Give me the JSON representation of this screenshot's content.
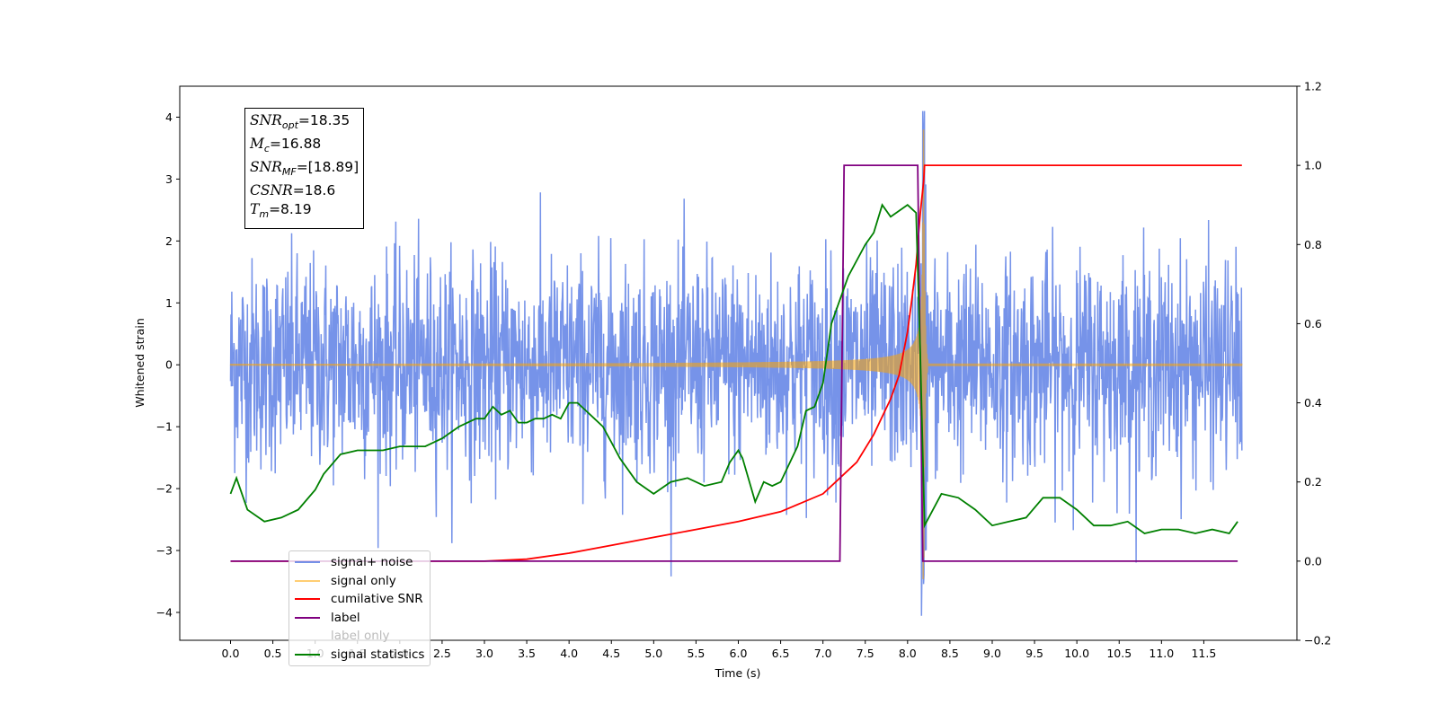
{
  "chart_data": {
    "type": "line",
    "title": "",
    "xlabel": "Time (s)",
    "ylabel": "Whitened strain",
    "xlim": [
      -0.6,
      12.6
    ],
    "ylim": [
      -4.45,
      4.5
    ],
    "y2lim": [
      -0.2,
      1.2
    ],
    "xticks": [
      0.0,
      0.5,
      1.0,
      1.5,
      2.0,
      2.5,
      3.0,
      3.5,
      4.0,
      4.5,
      5.0,
      5.5,
      6.0,
      6.5,
      7.0,
      7.5,
      8.0,
      8.5,
      9.0,
      9.5,
      10.0,
      10.5,
      11.0,
      11.5
    ],
    "xtick_labels": [
      "0.0",
      "0.5",
      "1.0",
      "1.5",
      "2.0",
      "2.5",
      "3.0",
      "3.5",
      "4.0",
      "4.5",
      "5.0",
      "5.5",
      "6.0",
      "6.5",
      "7.0",
      "7.5",
      "8.0",
      "8.5",
      "9.0",
      "9.5",
      "10.0",
      "10.5",
      "11.0",
      "11.5"
    ],
    "yticks": [
      4,
      3,
      2,
      1,
      0,
      -1,
      -2,
      -3,
      -4
    ],
    "ytick_labels": [
      "4",
      "3",
      "2",
      "1",
      "0",
      "−1",
      "−2",
      "−3",
      "−4"
    ],
    "y2ticks": [
      1.2,
      1.0,
      0.8,
      0.6,
      0.4,
      0.2,
      0.0,
      -0.2
    ],
    "y2tick_labels": [
      "1.2",
      "1.0",
      "0.8",
      "0.6",
      "0.4",
      "0.2",
      "0.0",
      "−0.2"
    ],
    "grid": false,
    "legend_position": "lower-left",
    "annotation": {
      "snr_opt": {
        "sym": "SNR",
        "sub": "opt",
        "value": "=18.35"
      },
      "mc": {
        "sym": "M",
        "sub": "c",
        "value": "=16.88"
      },
      "snr_mf": {
        "sym": "SNR",
        "sub": "MF",
        "value": "=[18.89]"
      },
      "csnr": {
        "sym": "CSNR",
        "sub": "",
        "value": "=18.6"
      },
      "tm": {
        "sym": "T",
        "sub": "m",
        "value": "=8.19"
      }
    },
    "series": [
      {
        "name": "signal+ noise",
        "color": "#4169e1",
        "axis": "left",
        "kind": "noise",
        "amplitude_sigma": 0.85,
        "peak_range": [
          -4.1,
          4.1
        ]
      },
      {
        "name": "signal only",
        "color": "#ffa500",
        "axis": "left",
        "kind": "chirp",
        "merger_time": 8.19,
        "peak_amplitude": 3.8
      },
      {
        "name": "cumilative SNR",
        "color": "#ff0000",
        "axis": "right",
        "x": [
          0.0,
          3.0,
          3.5,
          4.0,
          4.5,
          5.0,
          5.5,
          6.0,
          6.5,
          7.0,
          7.2,
          7.4,
          7.6,
          7.8,
          7.9,
          8.0,
          8.05,
          8.1,
          8.15,
          8.19,
          8.2,
          11.95
        ],
        "values": [
          0.0,
          0.0,
          0.005,
          0.02,
          0.04,
          0.06,
          0.08,
          0.1,
          0.125,
          0.17,
          0.21,
          0.25,
          0.32,
          0.41,
          0.47,
          0.58,
          0.66,
          0.75,
          0.88,
          0.96,
          1.0,
          1.0
        ]
      },
      {
        "name": "label",
        "color": "#800080",
        "axis": "right",
        "x": [
          0.0,
          7.2,
          7.25,
          8.12,
          8.18,
          11.9
        ],
        "values": [
          0.0,
          0.0,
          1.0,
          1.0,
          0.0,
          0.0
        ]
      },
      {
        "name": "label only",
        "color": "#00000000",
        "axis": "right",
        "x": [],
        "values": []
      },
      {
        "name": "signal statistics",
        "color": "#008000",
        "axis": "right",
        "x": [
          0.0,
          0.07,
          0.2,
          0.4,
          0.6,
          0.8,
          1.0,
          1.1,
          1.3,
          1.5,
          1.8,
          2.0,
          2.3,
          2.5,
          2.7,
          2.9,
          3.0,
          3.1,
          3.2,
          3.3,
          3.4,
          3.5,
          3.6,
          3.7,
          3.8,
          3.9,
          4.0,
          4.1,
          4.2,
          4.3,
          4.4,
          4.5,
          4.6,
          4.8,
          5.0,
          5.2,
          5.4,
          5.6,
          5.8,
          5.9,
          6.0,
          6.05,
          6.2,
          6.3,
          6.4,
          6.5,
          6.7,
          6.8,
          6.9,
          7.0,
          7.1,
          7.3,
          7.5,
          7.6,
          7.7,
          7.8,
          8.0,
          8.1,
          8.15,
          8.2,
          8.3,
          8.4,
          8.6,
          8.8,
          9.0,
          9.2,
          9.4,
          9.6,
          9.8,
          10.0,
          10.2,
          10.4,
          10.6,
          10.8,
          11.0,
          11.2,
          11.4,
          11.6,
          11.8,
          11.9
        ],
        "values": [
          0.17,
          0.21,
          0.13,
          0.1,
          0.11,
          0.13,
          0.18,
          0.22,
          0.27,
          0.28,
          0.28,
          0.29,
          0.29,
          0.31,
          0.34,
          0.36,
          0.36,
          0.39,
          0.37,
          0.38,
          0.35,
          0.35,
          0.36,
          0.36,
          0.37,
          0.36,
          0.4,
          0.4,
          0.38,
          0.36,
          0.34,
          0.3,
          0.26,
          0.2,
          0.17,
          0.2,
          0.21,
          0.19,
          0.2,
          0.25,
          0.28,
          0.26,
          0.15,
          0.2,
          0.19,
          0.2,
          0.29,
          0.38,
          0.39,
          0.45,
          0.6,
          0.72,
          0.8,
          0.83,
          0.9,
          0.87,
          0.9,
          0.88,
          0.52,
          0.09,
          0.13,
          0.17,
          0.16,
          0.13,
          0.09,
          0.1,
          0.11,
          0.16,
          0.16,
          0.13,
          0.09,
          0.09,
          0.1,
          0.07,
          0.08,
          0.08,
          0.07,
          0.08,
          0.07,
          0.1
        ]
      }
    ]
  }
}
